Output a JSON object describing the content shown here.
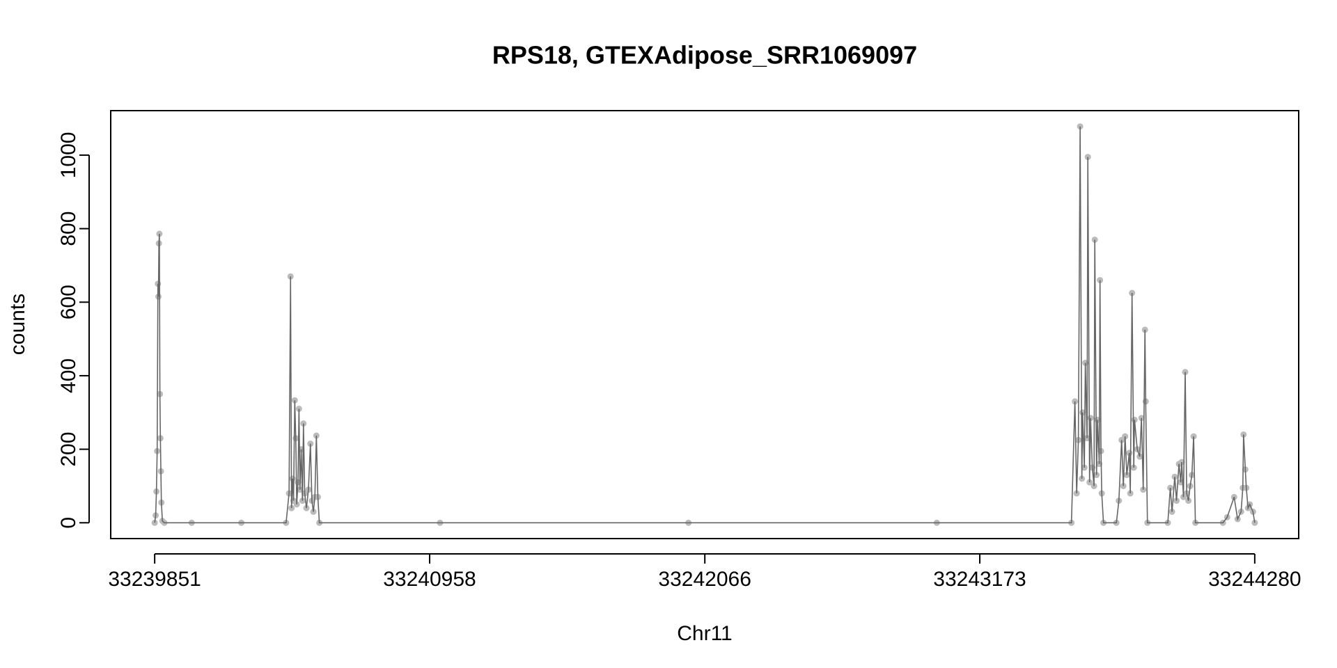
{
  "chart_data": {
    "type": "line",
    "title": "RPS18, GTEXAdipose_SRR1069097",
    "xlabel": "Chr11",
    "ylabel": "counts",
    "x": [
      33239851,
      33239855,
      33239858,
      33239861,
      33239864,
      33239866,
      33239868,
      33239870,
      33239872,
      33239874,
      33239876,
      33239878,
      33239882,
      33239890,
      33240000,
      33240200,
      33240380,
      33240392,
      33240398,
      33240402,
      33240406,
      33240410,
      33240415,
      33240419,
      33240423,
      33240428,
      33240432,
      33240436,
      33240441,
      33240446,
      33240450,
      33240455,
      33240462,
      33240470,
      33240478,
      33240484,
      33240490,
      33240496,
      33240502,
      33240508,
      33240514,
      33241000,
      33242000,
      33243000,
      33243542,
      33243556,
      33243563,
      33243570,
      33243577,
      33243584,
      33243587,
      33243594,
      33243598,
      33243605,
      33243608,
      33243615,
      33243619,
      33243626,
      33243633,
      33243636,
      33243643,
      33243647,
      33243654,
      33243657,
      33243661,
      33243664,
      33243671,
      33243723,
      33243733,
      33243744,
      33243751,
      33243758,
      33243765,
      33243775,
      33243779,
      33243786,
      33243793,
      33243796,
      33243807,
      33243817,
      33243824,
      33243831,
      33243838,
      33243841,
      33243848,
      33243930,
      33243940,
      33243947,
      33243958,
      33243965,
      33243975,
      33243982,
      33243986,
      33243993,
      33244000,
      33244006,
      33244013,
      33244020,
      33244027,
      33244034,
      33244041,
      33244152,
      33244169,
      33244197,
      33244211,
      33244225,
      33244232,
      33244235,
      33244242,
      33244246,
      33244253,
      33244260,
      33244273,
      33244280
    ],
    "values": [
      0,
      20,
      85,
      195,
      650,
      615,
      760,
      786,
      350,
      230,
      140,
      55,
      5,
      0,
      0,
      0,
      0,
      80,
      670,
      40,
      120,
      60,
      333,
      230,
      50,
      110,
      310,
      90,
      200,
      60,
      270,
      80,
      40,
      90,
      215,
      60,
      30,
      70,
      237,
      70,
      0,
      0,
      0,
      0,
      0,
      330,
      80,
      225,
      1078,
      120,
      300,
      150,
      435,
      230,
      995,
      110,
      285,
      150,
      100,
      770,
      130,
      280,
      160,
      660,
      195,
      80,
      0,
      0,
      60,
      225,
      100,
      235,
      130,
      190,
      80,
      625,
      150,
      280,
      200,
      180,
      285,
      90,
      525,
      330,
      0,
      0,
      95,
      30,
      125,
      60,
      160,
      110,
      165,
      70,
      410,
      80,
      60,
      100,
      130,
      235,
      0,
      0,
      15,
      70,
      10,
      30,
      95,
      240,
      145,
      95,
      40,
      50,
      30,
      0
    ],
    "color": "#666666",
    "point_color": "#bbbbbb",
    "xlim": [
      33239674,
      33244457
    ],
    "xticks": [
      33239851,
      33240958,
      33242066,
      33243173,
      33244280
    ],
    "ylim": [
      -43,
      1121
    ],
    "yticks": [
      0,
      200,
      400,
      600,
      800,
      1000
    ]
  }
}
